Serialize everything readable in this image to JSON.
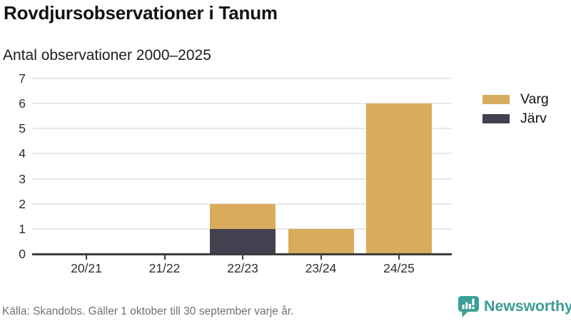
{
  "header": {
    "title": "Rovdjursobservationer i Tanum",
    "subtitle": "Antal observationer 2000–2025"
  },
  "chart_data": {
    "type": "bar",
    "stacked": true,
    "title": "Rovdjursobservationer i Tanum",
    "subtitle": "Antal observationer 2000–2025",
    "categories": [
      "20/21",
      "21/22",
      "22/23",
      "23/24",
      "24/25"
    ],
    "series": [
      {
        "name": "Varg",
        "color": "#d9ab5c",
        "values": [
          0,
          0,
          1,
          1,
          6
        ]
      },
      {
        "name": "Järv",
        "color": "#42414f",
        "values": [
          0,
          0,
          1,
          0,
          0
        ]
      }
    ],
    "stack_order_bottom_to_top": [
      "Järv",
      "Varg"
    ],
    "totals": [
      0,
      0,
      2,
      1,
      6
    ],
    "xlabel": "",
    "ylabel": "",
    "ylim": [
      0,
      7
    ],
    "yticks": [
      0,
      1,
      2,
      3,
      4,
      5,
      6,
      7
    ],
    "grid": true,
    "legend_position": "top-right"
  },
  "footer": {
    "source": "Källa: Skandobs. Gäller 1 oktober till 30 september varje år.",
    "brand": "Newsworthy",
    "brand_color": "#3b9d95"
  }
}
